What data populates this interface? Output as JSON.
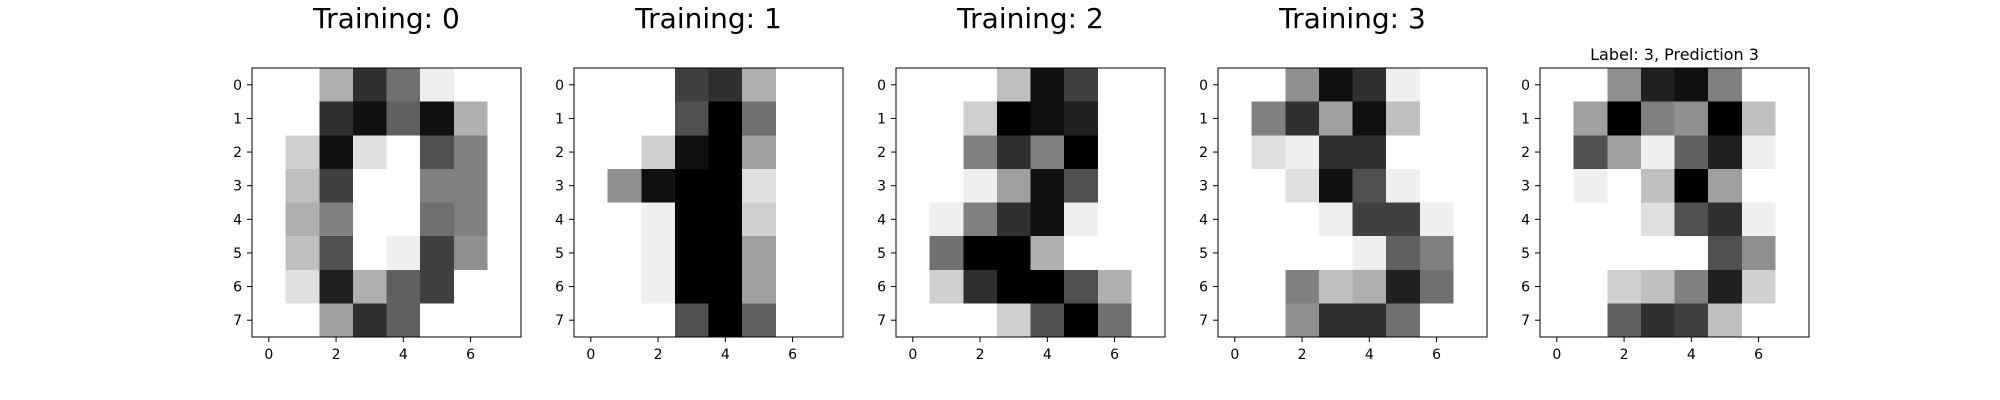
{
  "chart_data": [
    {
      "type": "heatmap",
      "title": "Training: 0",
      "title_size": "large",
      "colormap": "gray_r",
      "value_range": [
        0,
        16
      ],
      "xticks": [
        0,
        2,
        4,
        6
      ],
      "yticks": [
        0,
        1,
        2,
        3,
        4,
        5,
        6,
        7
      ],
      "xlim": [
        -0.5,
        7.5
      ],
      "ylim": [
        7.5,
        -0.5
      ],
      "values": [
        [
          0,
          0,
          5,
          13,
          9,
          1,
          0,
          0
        ],
        [
          0,
          0,
          13,
          15,
          10,
          15,
          5,
          0
        ],
        [
          0,
          3,
          15,
          2,
          0,
          11,
          8,
          0
        ],
        [
          0,
          4,
          12,
          0,
          0,
          8,
          8,
          0
        ],
        [
          0,
          5,
          8,
          0,
          0,
          9,
          8,
          0
        ],
        [
          0,
          4,
          11,
          0,
          1,
          12,
          7,
          0
        ],
        [
          0,
          2,
          14,
          5,
          10,
          12,
          0,
          0
        ],
        [
          0,
          0,
          6,
          13,
          10,
          0,
          0,
          0
        ]
      ]
    },
    {
      "type": "heatmap",
      "title": "Training: 1",
      "title_size": "large",
      "colormap": "gray_r",
      "value_range": [
        0,
        16
      ],
      "xticks": [
        0,
        2,
        4,
        6
      ],
      "yticks": [
        0,
        1,
        2,
        3,
        4,
        5,
        6,
        7
      ],
      "xlim": [
        -0.5,
        7.5
      ],
      "ylim": [
        7.5,
        -0.5
      ],
      "values": [
        [
          0,
          0,
          0,
          12,
          13,
          5,
          0,
          0
        ],
        [
          0,
          0,
          0,
          11,
          16,
          9,
          0,
          0
        ],
        [
          0,
          0,
          3,
          15,
          16,
          6,
          0,
          0
        ],
        [
          0,
          7,
          15,
          16,
          16,
          2,
          0,
          0
        ],
        [
          0,
          0,
          1,
          16,
          16,
          3,
          0,
          0
        ],
        [
          0,
          0,
          1,
          16,
          16,
          6,
          0,
          0
        ],
        [
          0,
          0,
          1,
          16,
          16,
          6,
          0,
          0
        ],
        [
          0,
          0,
          0,
          11,
          16,
          10,
          0,
          0
        ]
      ]
    },
    {
      "type": "heatmap",
      "title": "Training: 2",
      "title_size": "large",
      "colormap": "gray_r",
      "value_range": [
        0,
        16
      ],
      "xticks": [
        0,
        2,
        4,
        6
      ],
      "yticks": [
        0,
        1,
        2,
        3,
        4,
        5,
        6,
        7
      ],
      "xlim": [
        -0.5,
        7.5
      ],
      "ylim": [
        7.5,
        -0.5
      ],
      "values": [
        [
          0,
          0,
          0,
          4,
          15,
          12,
          0,
          0
        ],
        [
          0,
          0,
          3,
          16,
          15,
          14,
          0,
          0
        ],
        [
          0,
          0,
          8,
          13,
          8,
          16,
          0,
          0
        ],
        [
          0,
          0,
          1,
          6,
          15,
          11,
          0,
          0
        ],
        [
          0,
          1,
          8,
          13,
          15,
          1,
          0,
          0
        ],
        [
          0,
          9,
          16,
          16,
          5,
          0,
          0,
          0
        ],
        [
          0,
          3,
          13,
          16,
          16,
          11,
          5,
          0
        ],
        [
          0,
          0,
          0,
          3,
          11,
          16,
          9,
          0
        ]
      ]
    },
    {
      "type": "heatmap",
      "title": "Training: 3",
      "title_size": "large",
      "colormap": "gray_r",
      "value_range": [
        0,
        16
      ],
      "xticks": [
        0,
        2,
        4,
        6
      ],
      "yticks": [
        0,
        1,
        2,
        3,
        4,
        5,
        6,
        7
      ],
      "xlim": [
        -0.5,
        7.5
      ],
      "ylim": [
        7.5,
        -0.5
      ],
      "values": [
        [
          0,
          0,
          7,
          15,
          13,
          1,
          0,
          0
        ],
        [
          0,
          8,
          13,
          6,
          15,
          4,
          0,
          0
        ],
        [
          0,
          2,
          1,
          13,
          13,
          0,
          0,
          0
        ],
        [
          0,
          0,
          2,
          15,
          11,
          1,
          0,
          0
        ],
        [
          0,
          0,
          0,
          1,
          12,
          12,
          1,
          0
        ],
        [
          0,
          0,
          0,
          0,
          1,
          10,
          8,
          0
        ],
        [
          0,
          0,
          8,
          4,
          5,
          14,
          9,
          0
        ],
        [
          0,
          0,
          7,
          13,
          13,
          9,
          0,
          0
        ]
      ]
    },
    {
      "type": "heatmap",
      "title": "Label: 3, Prediction 3",
      "title_size": "small",
      "colormap": "gray_r",
      "value_range": [
        0,
        16
      ],
      "xticks": [
        0,
        2,
        4,
        6
      ],
      "yticks": [
        0,
        1,
        2,
        3,
        4,
        5,
        6,
        7
      ],
      "xlim": [
        -0.5,
        7.5
      ],
      "ylim": [
        7.5,
        -0.5
      ],
      "values": [
        [
          0,
          0,
          7,
          14,
          15,
          8,
          0,
          0
        ],
        [
          0,
          6,
          16,
          8,
          7,
          16,
          4,
          0
        ],
        [
          0,
          11,
          6,
          1,
          10,
          14,
          1,
          0
        ],
        [
          0,
          1,
          0,
          4,
          16,
          6,
          0,
          0
        ],
        [
          0,
          0,
          0,
          2,
          11,
          13,
          1,
          0
        ],
        [
          0,
          0,
          0,
          0,
          0,
          11,
          7,
          0
        ],
        [
          0,
          0,
          3,
          4,
          8,
          14,
          3,
          0
        ],
        [
          0,
          0,
          10,
          13,
          12,
          4,
          0,
          0
        ]
      ]
    }
  ]
}
